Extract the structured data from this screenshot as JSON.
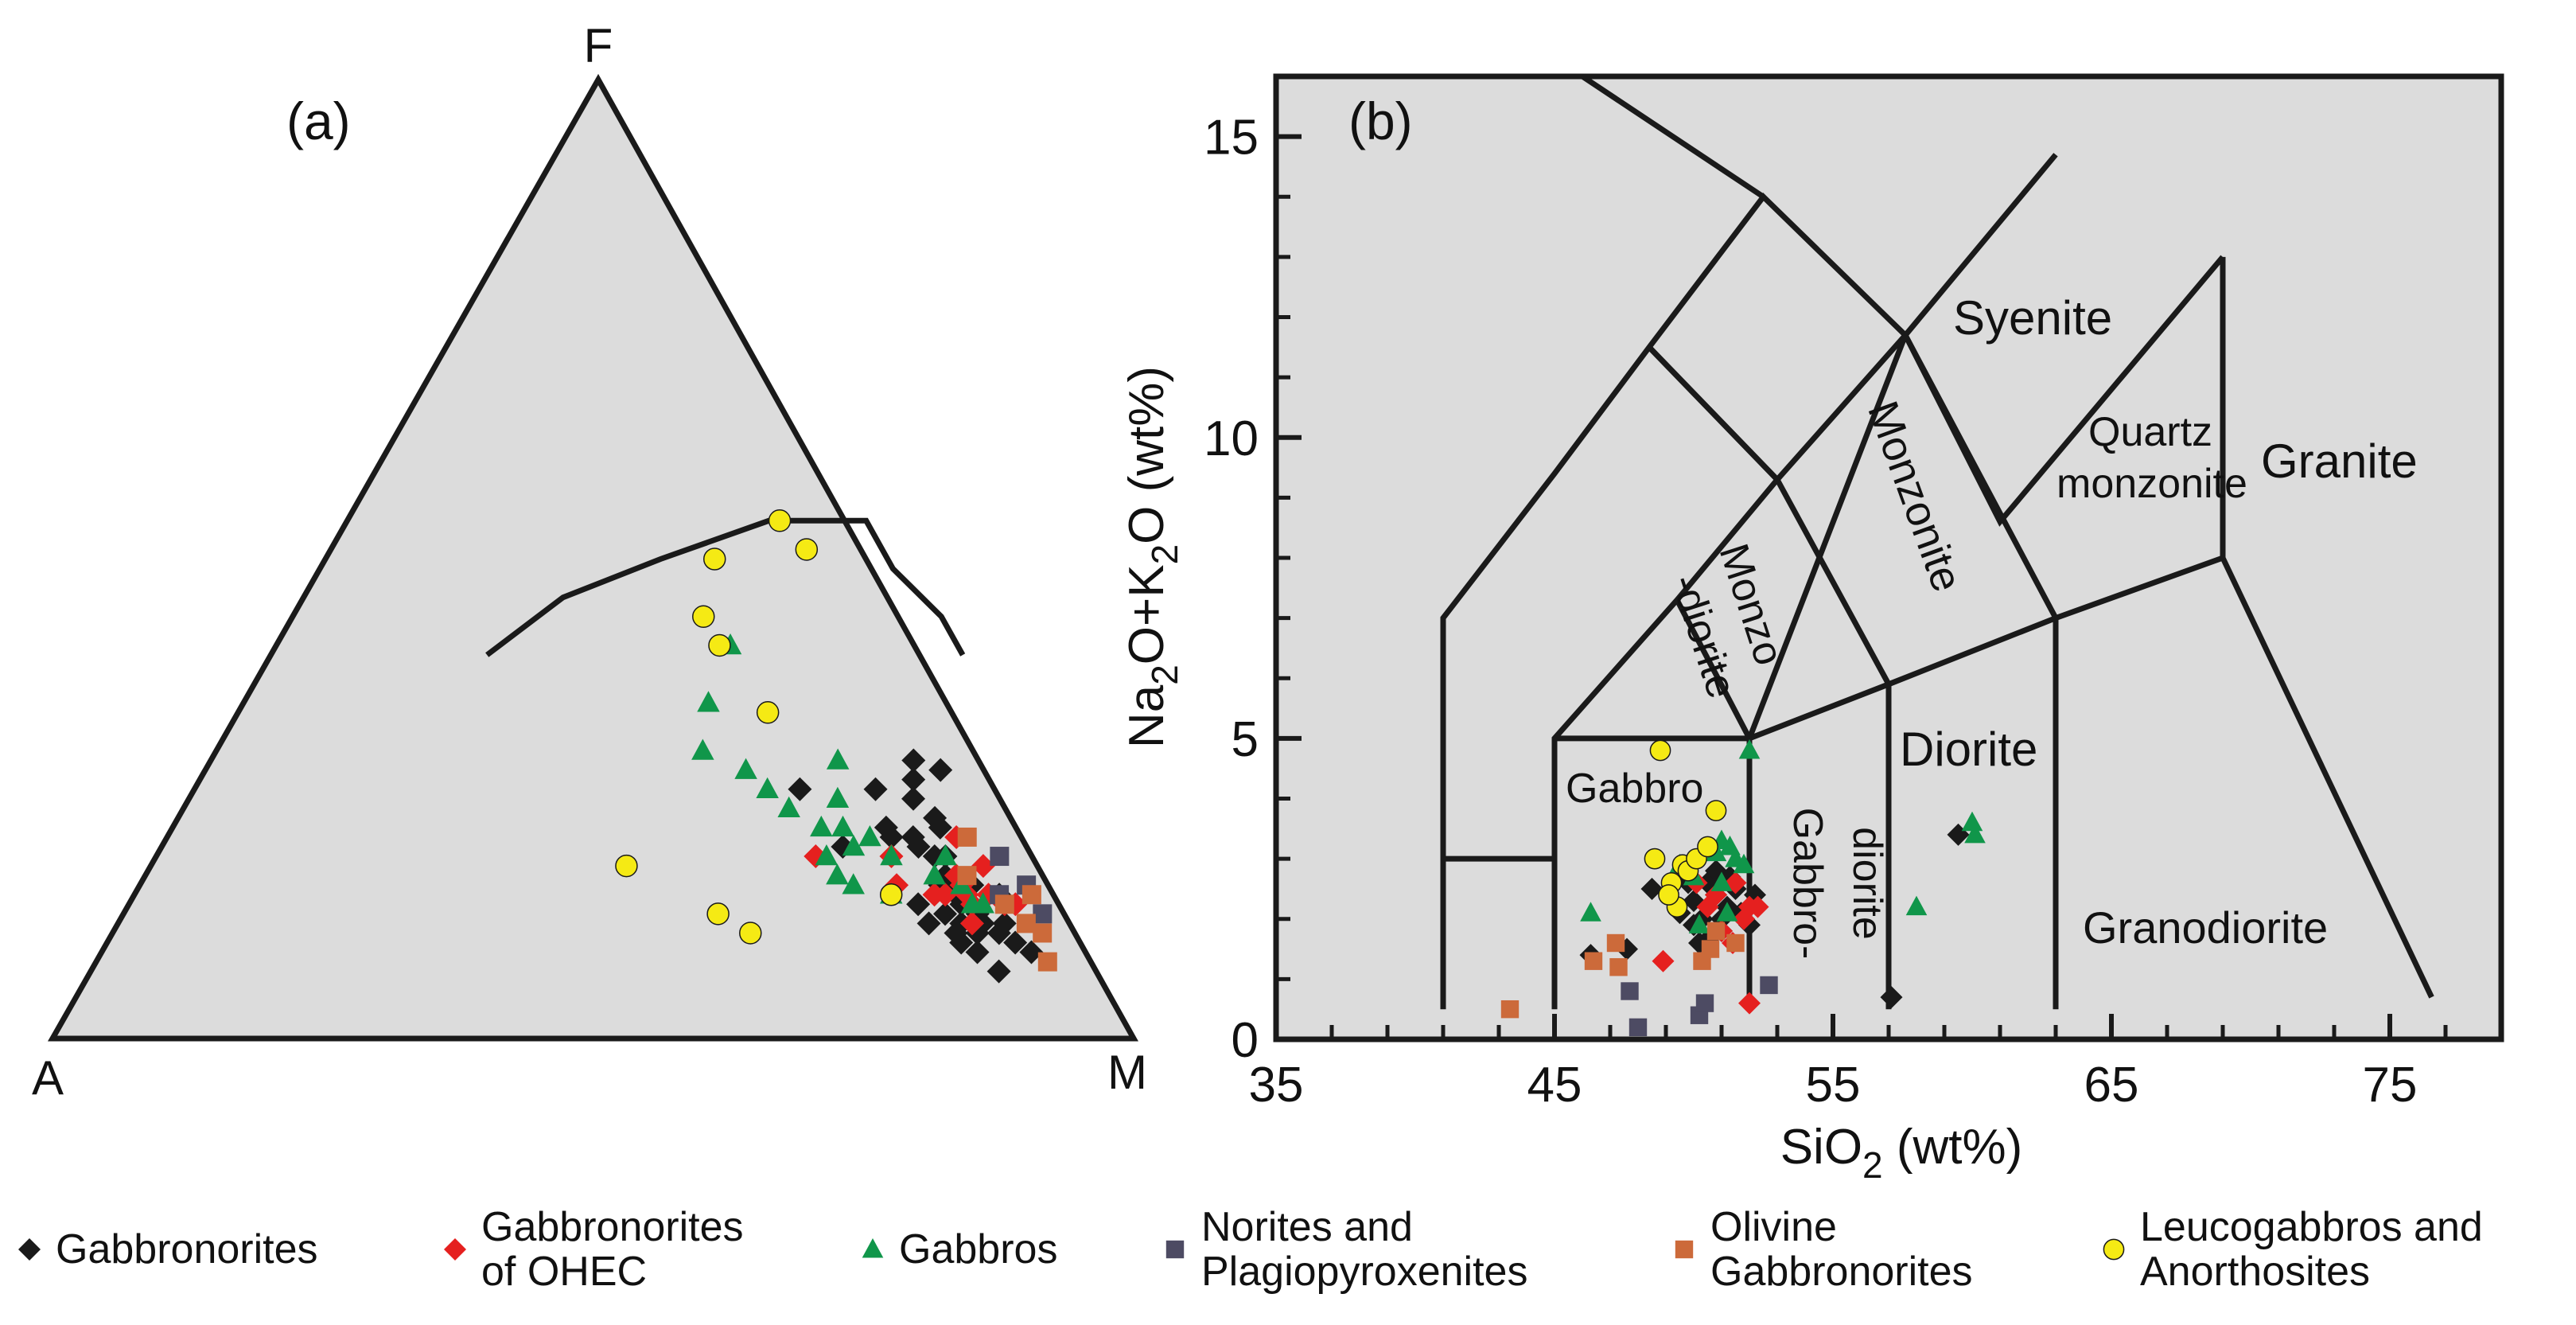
{
  "panel_a": {
    "label": "(a)",
    "vertex_labels": {
      "F": "F",
      "A": "A",
      "M": "M"
    }
  },
  "panel_b": {
    "label": "(b)",
    "xlabel_main": "SiO",
    "xlabel_sub": "2",
    "xlabel_tail": " (wt%)",
    "ylabel_parts": [
      "Na",
      "2",
      "O+K",
      "2",
      "O (wt%)"
    ],
    "field_labels": {
      "syenite": "Syenite",
      "granite": "Granite",
      "quartz_monzonite_1": "Quartz",
      "quartz_monzonite_2": "monzonite",
      "monzonite": "Monzonite",
      "monzodiorite_1": "Monzo",
      "monzodiorite_2": "-diorite",
      "gabbro": "Gabbro",
      "gabbrodiorite_1": "Gabbro-",
      "gabbrodiorite_2": "diorite",
      "diorite": "Diorite",
      "granodiorite": "Granodiorite"
    }
  },
  "colors": {
    "background": "#ffffff",
    "plot_fill": "#dcdcdc",
    "lines": "#1a1a1a",
    "gabbronorites": "#1a1a1a",
    "gabbronorites_ohec": "#e5201f",
    "gabbros": "#10964a",
    "norites": "#4d4b63",
    "olivine_gabbronorites": "#cc6a3a",
    "leucogabbros": "#f5ea14"
  },
  "legend": [
    {
      "key": "gabbronorites",
      "marker": "diamond",
      "color": "#1a1a1a",
      "text": "Gabbronorites"
    },
    {
      "key": "gabbronorites_ohec",
      "marker": "diamond",
      "color": "#e5201f",
      "text": "Gabbronorites\nof OHEC"
    },
    {
      "key": "gabbros",
      "marker": "triangle",
      "color": "#10964a",
      "text": "Gabbros"
    },
    {
      "key": "norites",
      "marker": "square",
      "color": "#4d4b63",
      "text": "Norites and\nPlagiopyroxenites"
    },
    {
      "key": "olivine_gabbronorites",
      "marker": "square",
      "color": "#cc6a3a",
      "text": "Olivine\nGabbronorites"
    },
    {
      "key": "leucogabbros",
      "marker": "circle",
      "color": "#f5ea14",
      "text": "Leucogabbros and\nAnorthosites"
    }
  ],
  "chart_data": [
    {
      "type": "scatter",
      "subtype": "ternary",
      "title": "",
      "axes": [
        "A",
        "F",
        "M"
      ],
      "boundary_curve": [
        [
          0.64,
          0.4
        ],
        [
          0.6,
          0.44
        ],
        [
          0.53,
          0.49
        ],
        [
          0.48,
          0.54
        ],
        [
          0.46,
          0.54
        ],
        [
          0.39,
          0.54
        ],
        [
          0.31,
          0.5
        ],
        [
          0.24,
          0.46
        ],
        [
          0.2,
          0.4
        ]
      ],
      "series": [
        {
          "name": "Gabbronorites",
          "marker": "diamond",
          "color": "#1a1a1a",
          "points": [
            [
              0.56,
              0.26
            ],
            [
              0.65,
              0.29
            ],
            [
              0.63,
              0.26
            ],
            [
              0.66,
              0.27
            ],
            [
              0.68,
              0.28
            ],
            [
              0.66,
              0.22
            ],
            [
              0.67,
              0.25
            ],
            [
              0.7,
              0.23
            ],
            [
              0.69,
              0.21
            ],
            [
              0.71,
              0.22
            ],
            [
              0.74,
              0.17
            ],
            [
              0.75,
              0.16
            ],
            [
              0.76,
              0.15
            ],
            [
              0.77,
              0.14
            ],
            [
              0.79,
              0.13
            ],
            [
              0.78,
              0.14
            ],
            [
              0.8,
              0.12
            ],
            [
              0.76,
              0.13
            ],
            [
              0.78,
              0.11
            ],
            [
              0.82,
              0.12
            ],
            [
              0.84,
              0.1
            ],
            [
              0.86,
              0.09
            ],
            [
              0.8,
              0.15
            ],
            [
              0.73,
              0.19
            ],
            [
              0.75,
              0.12
            ],
            [
              0.81,
              0.09
            ],
            [
              0.78,
              0.12
            ],
            [
              0.63,
              0.2
            ],
            [
              0.73,
              0.14
            ],
            [
              0.74,
              0.16
            ],
            [
              0.77,
              0.16
            ],
            [
              0.79,
              0.1
            ],
            [
              0.8,
              0.11
            ],
            [
              0.82,
              0.11
            ],
            [
              0.84,
              0.07
            ],
            [
              0.7,
              0.2
            ],
            [
              0.72,
              0.19
            ],
            [
              0.67,
              0.21
            ]
          ]
        },
        {
          "name": "Gabbronorites of OHEC",
          "marker": "diamond",
          "color": "#e5201f",
          "points": [
            [
              0.61,
              0.19
            ],
            [
              0.73,
              0.21
            ],
            [
              0.75,
              0.17
            ],
            [
              0.76,
              0.16
            ],
            [
              0.77,
              0.15
            ],
            [
              0.78,
              0.14
            ],
            [
              0.79,
              0.15
            ],
            [
              0.81,
              0.14
            ],
            [
              0.82,
              0.14
            ],
            [
              0.77,
              0.18
            ],
            [
              0.75,
              0.15
            ],
            [
              0.79,
              0.12
            ],
            [
              0.7,
              0.16
            ],
            [
              0.68,
              0.19
            ],
            [
              0.74,
              0.15
            ]
          ]
        },
        {
          "name": "Gabbros",
          "marker": "triangle",
          "color": "#10964a",
          "points": [
            [
              0.42,
              0.41
            ],
            [
              0.43,
              0.35
            ],
            [
              0.45,
              0.3
            ],
            [
              0.5,
              0.28
            ],
            [
              0.53,
              0.26
            ],
            [
              0.58,
              0.29
            ],
            [
              0.6,
              0.22
            ],
            [
              0.6,
              0.25
            ],
            [
              0.62,
              0.19
            ],
            [
              0.64,
              0.2
            ],
            [
              0.66,
              0.16
            ],
            [
              0.68,
              0.19
            ],
            [
              0.73,
              0.17
            ],
            [
              0.76,
              0.16
            ],
            [
              0.78,
              0.14
            ],
            [
              0.62,
              0.22
            ],
            [
              0.65,
              0.21
            ],
            [
              0.73,
              0.19
            ],
            [
              0.79,
              0.14
            ],
            [
              0.56,
              0.24
            ],
            [
              0.64,
              0.17
            ],
            [
              0.7,
              0.15
            ]
          ]
        },
        {
          "name": "Norites and Plagiopyroxenites",
          "marker": "square",
          "color": "#4d4b63",
          "points": [
            [
              0.78,
              0.19
            ],
            [
              0.8,
              0.15
            ],
            [
              0.82,
              0.16
            ],
            [
              0.85,
              0.13
            ]
          ]
        },
        {
          "name": "Olivine Gabbronorites",
          "marker": "square",
          "color": "#cc6a3a",
          "points": [
            [
              0.74,
              0.21
            ],
            [
              0.76,
              0.17
            ],
            [
              0.81,
              0.14
            ],
            [
              0.83,
              0.15
            ],
            [
              0.84,
              0.12
            ],
            [
              0.86,
              0.11
            ],
            [
              0.88,
              0.08
            ]
          ]
        },
        {
          "name": "Leucogabbros and Anorthosites",
          "marker": "circle",
          "color": "#f5ea14",
          "points": [
            [
              0.36,
              0.5
            ],
            [
              0.4,
              0.54
            ],
            [
              0.44,
              0.51
            ],
            [
              0.38,
              0.44
            ],
            [
              0.41,
              0.41
            ],
            [
              0.49,
              0.34
            ],
            [
              0.55,
              0.13
            ],
            [
              0.59,
              0.11
            ],
            [
              0.7,
              0.15
            ],
            [
              0.44,
              0.18
            ]
          ]
        }
      ]
    },
    {
      "type": "scatter",
      "subtype": "TAS",
      "title": "",
      "xlabel": "SiO2 (wt%)",
      "ylabel": "Na2O+K2O (wt%)",
      "xlim": [
        35,
        79
      ],
      "ylim": [
        0,
        16
      ],
      "xticks": [
        35,
        45,
        55,
        65,
        75
      ],
      "yticks": [
        0,
        5,
        10,
        15
      ],
      "field_boundaries": [
        [
          [
            41,
            0.5
          ],
          [
            41,
            7
          ],
          [
            45,
            9.4
          ],
          [
            48.4,
            11.5
          ],
          [
            52.5,
            14
          ],
          [
            57.6,
            11.7
          ],
          [
            63,
            14.7
          ]
        ],
        [
          [
            45,
            0.5
          ],
          [
            45,
            5
          ],
          [
            49.4,
            7.3
          ],
          [
            53,
            9.3
          ],
          [
            57.6,
            11.7
          ],
          [
            61,
            8.6
          ],
          [
            69,
            13
          ]
        ],
        [
          [
            41,
            3
          ],
          [
            45,
            3
          ]
        ],
        [
          [
            45,
            5
          ],
          [
            52,
            5
          ],
          [
            57,
            5.9
          ],
          [
            63,
            7
          ],
          [
            69,
            8
          ],
          [
            69,
            13
          ]
        ],
        [
          [
            52,
            0.5
          ],
          [
            52,
            5
          ],
          [
            57.6,
            11.7
          ]
        ],
        [
          [
            57,
            0.5
          ],
          [
            57,
            5.9
          ],
          [
            53,
            9.3
          ],
          [
            48.4,
            11.5
          ]
        ],
        [
          [
            63,
            0.5
          ],
          [
            63,
            7
          ],
          [
            57.6,
            11.7
          ]
        ],
        [
          [
            49.4,
            7.3
          ],
          [
            52,
            5
          ]
        ],
        [
          [
            53,
            9.3
          ],
          [
            48.4,
            11.5
          ]
        ],
        [
          [
            69,
            8
          ],
          [
            76.5,
            0.7
          ]
        ],
        [
          [
            46,
            16
          ],
          [
            52.5,
            14
          ]
        ]
      ],
      "series": [
        {
          "name": "Gabbronorites",
          "marker": "diamond",
          "color": "#1a1a1a",
          "points": [
            [
              46.3,
              1.4
            ],
            [
              47.6,
              1.5
            ],
            [
              48.5,
              2.5
            ],
            [
              49.5,
              2.1
            ],
            [
              50.0,
              2.3
            ],
            [
              50.3,
              2.0
            ],
            [
              50.5,
              2.6
            ],
            [
              50.8,
              2.4
            ],
            [
              51.0,
              1.8
            ],
            [
              51.2,
              2.2
            ],
            [
              51.5,
              2.5
            ],
            [
              51.8,
              2.0
            ],
            [
              52.0,
              1.9
            ],
            [
              52.2,
              2.4
            ],
            [
              50.2,
              1.6
            ],
            [
              50.8,
              2.8
            ],
            [
              51.3,
              2.7
            ],
            [
              49.8,
              2.6
            ],
            [
              50.6,
              1.7
            ],
            [
              51.7,
              2.1
            ],
            [
              57.1,
              0.7
            ],
            [
              59.5,
              3.4
            ],
            [
              50.0,
              1.9
            ],
            [
              51.0,
              2.0
            ]
          ]
        },
        {
          "name": "Gabbronorites of OHEC",
          "marker": "diamond",
          "color": "#e5201f",
          "points": [
            [
              48.9,
              1.3
            ],
            [
              50.1,
              2.6
            ],
            [
              50.5,
              2.2
            ],
            [
              51.0,
              1.8
            ],
            [
              51.5,
              2.6
            ],
            [
              52.0,
              2.2
            ],
            [
              52.3,
              2.2
            ],
            [
              51.8,
              2.0
            ],
            [
              52.0,
              0.6
            ],
            [
              50.8,
              2.4
            ],
            [
              51.4,
              1.6
            ]
          ]
        },
        {
          "name": "Gabbros",
          "marker": "triangle",
          "color": "#10964a",
          "points": [
            [
              46.3,
              2.1
            ],
            [
              49.5,
              2.9
            ],
            [
              50.0,
              2.7
            ],
            [
              50.8,
              3.1
            ],
            [
              51.0,
              3.3
            ],
            [
              51.3,
              3.2
            ],
            [
              51.5,
              3.0
            ],
            [
              51.8,
              2.9
            ],
            [
              51.0,
              2.6
            ],
            [
              52.0,
              4.8
            ],
            [
              50.2,
              1.9
            ],
            [
              51.2,
              2.1
            ],
            [
              58.0,
              2.2
            ],
            [
              60.0,
              3.6
            ],
            [
              60.1,
              3.4
            ]
          ]
        },
        {
          "name": "Norites and Plagiopyroxenites",
          "marker": "square",
          "color": "#4d4b63",
          "points": [
            [
              47.7,
              0.8
            ],
            [
              48.0,
              0.2
            ],
            [
              50.2,
              0.4
            ],
            [
              50.4,
              0.6
            ],
            [
              52.7,
              0.9
            ]
          ]
        },
        {
          "name": "Olivine Gabbronorites",
          "marker": "square",
          "color": "#cc6a3a",
          "points": [
            [
              43.4,
              0.5
            ],
            [
              46.4,
              1.3
            ],
            [
              47.2,
              1.6
            ],
            [
              47.3,
              1.2
            ],
            [
              50.3,
              1.3
            ],
            [
              50.8,
              1.8
            ],
            [
              51.5,
              1.6
            ],
            [
              50.6,
              1.5
            ]
          ]
        },
        {
          "name": "Leucogabbros and Anorthosites",
          "marker": "circle",
          "color": "#f5ea14",
          "points": [
            [
              48.6,
              3.0
            ],
            [
              48.8,
              4.8
            ],
            [
              49.2,
              2.6
            ],
            [
              49.4,
              2.2
            ],
            [
              49.6,
              2.9
            ],
            [
              49.8,
              2.8
            ],
            [
              50.1,
              3.0
            ],
            [
              50.5,
              3.2
            ],
            [
              50.8,
              3.8
            ],
            [
              49.1,
              2.4
            ]
          ]
        }
      ]
    }
  ]
}
